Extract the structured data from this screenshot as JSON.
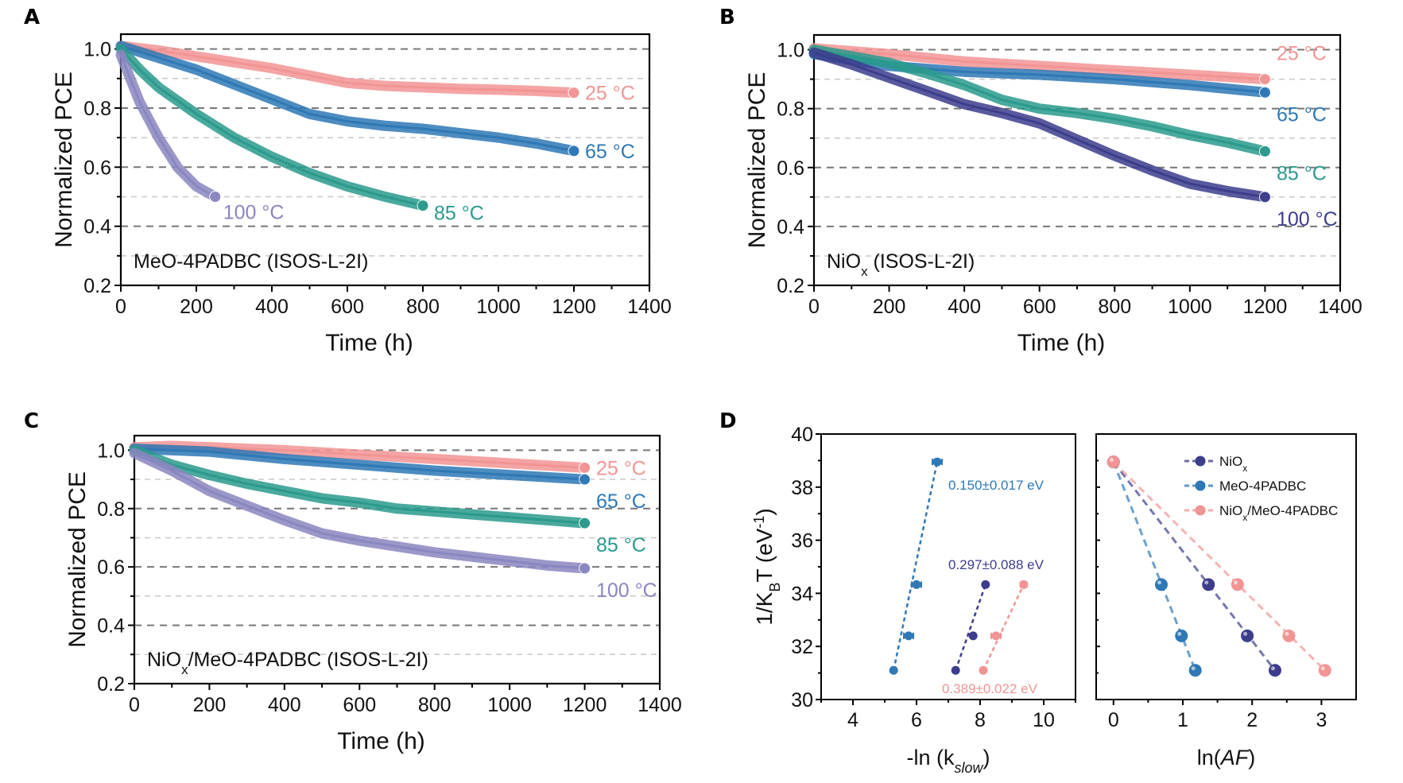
{
  "figure": {
    "panels": [
      "A",
      "B",
      "C",
      "D"
    ]
  },
  "colors": {
    "25C": "#f29494",
    "65C": "#2e78b5",
    "85C": "#2a9a8c",
    "100C_A": "#8a86c0",
    "100C": "#3c3d8c",
    "grid_major": "#777777",
    "grid_minor": "#c8c8c8"
  },
  "chart_data": [
    {
      "id": "A",
      "type": "line",
      "panel_label": "A",
      "annotation": "MeO-4PADBC (ISOS-L-2I)",
      "annotation_sub": "",
      "annotation_rest": "",
      "xlabel": "Time (h)",
      "ylabel": "Normalized PCE",
      "xlim": [
        0,
        1400
      ],
      "ylim": [
        0.2,
        1.05
      ],
      "xticks": [
        0,
        200,
        400,
        600,
        800,
        1000,
        1200,
        1400
      ],
      "yticks": [
        0.2,
        0.4,
        0.6,
        0.8,
        1.0
      ],
      "ytick_labels": [
        "0.2",
        "0.4",
        "0.6",
        "0.8",
        "1.0"
      ],
      "grid": true,
      "series": [
        {
          "name": "25 °C",
          "color_key": "25C",
          "x": [
            0,
            100,
            200,
            300,
            400,
            500,
            600,
            700,
            800,
            900,
            1000,
            1100,
            1200
          ],
          "y": [
            1.01,
            0.995,
            0.975,
            0.955,
            0.935,
            0.91,
            0.885,
            0.875,
            0.87,
            0.865,
            0.862,
            0.858,
            0.852
          ],
          "label_pos": "right"
        },
        {
          "name": "65 °C",
          "color_key": "65C",
          "x": [
            0,
            100,
            200,
            300,
            400,
            500,
            600,
            700,
            800,
            900,
            1000,
            1100,
            1200
          ],
          "y": [
            1.01,
            0.97,
            0.93,
            0.88,
            0.83,
            0.78,
            0.755,
            0.74,
            0.73,
            0.715,
            0.7,
            0.68,
            0.655
          ],
          "label_pos": "right"
        },
        {
          "name": "85 °C",
          "color_key": "85C",
          "x": [
            0,
            50,
            100,
            200,
            300,
            400,
            500,
            600,
            700,
            800
          ],
          "y": [
            1.0,
            0.93,
            0.87,
            0.78,
            0.7,
            0.635,
            0.58,
            0.535,
            0.5,
            0.47
          ],
          "label_pos": "below-right"
        },
        {
          "name": "100 °C",
          "color_key": "100C_A",
          "x": [
            0,
            25,
            50,
            100,
            150,
            200,
            250
          ],
          "y": [
            0.98,
            0.9,
            0.82,
            0.7,
            0.6,
            0.535,
            0.5
          ],
          "label_pos": "below-right"
        }
      ]
    },
    {
      "id": "B",
      "type": "line",
      "panel_label": "B",
      "annotation": "NiO",
      "annotation_sub": "x",
      "annotation_rest": " (ISOS-L-2I)",
      "xlabel": "Time (h)",
      "ylabel": "Normalized PCE",
      "xlim": [
        0,
        1400
      ],
      "ylim": [
        0.2,
        1.05
      ],
      "xticks": [
        0,
        200,
        400,
        600,
        800,
        1000,
        1200,
        1400
      ],
      "yticks": [
        0.2,
        0.4,
        0.6,
        0.8,
        1.0
      ],
      "ytick_labels": [
        "0.2",
        "0.4",
        "0.6",
        "0.8",
        "1.0"
      ],
      "grid": true,
      "series": [
        {
          "name": "25 °C",
          "color_key": "25C",
          "x": [
            0,
            200,
            400,
            600,
            800,
            1000,
            1200
          ],
          "y": [
            1.005,
            0.985,
            0.96,
            0.945,
            0.93,
            0.915,
            0.9
          ],
          "label_pos": "above-right"
        },
        {
          "name": "65 °C",
          "color_key": "65C",
          "x": [
            0,
            100,
            200,
            400,
            600,
            800,
            1000,
            1200
          ],
          "y": [
            0.985,
            0.965,
            0.945,
            0.925,
            0.915,
            0.9,
            0.88,
            0.855
          ],
          "label_pos": "below-right"
        },
        {
          "name": "85 °C",
          "color_key": "85C",
          "x": [
            0,
            200,
            300,
            400,
            500,
            600,
            700,
            800,
            900,
            1000,
            1100,
            1200
          ],
          "y": [
            1.0,
            0.955,
            0.92,
            0.88,
            0.83,
            0.8,
            0.785,
            0.765,
            0.74,
            0.71,
            0.685,
            0.655
          ],
          "label_pos": "below-right"
        },
        {
          "name": "100 °C",
          "color_key": "100C",
          "x": [
            0,
            100,
            200,
            300,
            400,
            500,
            600,
            700,
            800,
            900,
            1000,
            1100,
            1200
          ],
          "y": [
            0.99,
            0.95,
            0.905,
            0.86,
            0.815,
            0.785,
            0.75,
            0.695,
            0.64,
            0.59,
            0.545,
            0.52,
            0.5
          ],
          "label_pos": "below-right"
        }
      ]
    },
    {
      "id": "C",
      "type": "line",
      "panel_label": "C",
      "annotation": "NiO",
      "annotation_sub": "x",
      "annotation_rest": "/MeO-4PADBC (ISOS-L-2I)",
      "xlabel": "Time (h)",
      "ylabel": "Normalized PCE",
      "xlim": [
        0,
        1400
      ],
      "ylim": [
        0.2,
        1.05
      ],
      "xticks": [
        0,
        200,
        400,
        600,
        800,
        1000,
        1200,
        1400
      ],
      "yticks": [
        0.2,
        0.4,
        0.6,
        0.8,
        1.0
      ],
      "ytick_labels": [
        "0.2",
        "0.4",
        "0.6",
        "0.8",
        "1.0"
      ],
      "grid": true,
      "series": [
        {
          "name": "25 °C",
          "color_key": "25C",
          "x": [
            0,
            100,
            200,
            400,
            600,
            800,
            1000,
            1200
          ],
          "y": [
            1.01,
            1.015,
            1.01,
            1.0,
            0.985,
            0.97,
            0.955,
            0.94
          ],
          "label_pos": "right"
        },
        {
          "name": "65 °C",
          "color_key": "65C",
          "x": [
            0,
            200,
            400,
            600,
            800,
            1000,
            1200
          ],
          "y": [
            1.005,
            0.995,
            0.97,
            0.95,
            0.93,
            0.915,
            0.9
          ],
          "label_pos": "below-right"
        },
        {
          "name": "85 °C",
          "color_key": "85C",
          "x": [
            0,
            100,
            200,
            300,
            400,
            500,
            600,
            700,
            800,
            900,
            1000,
            1100,
            1200
          ],
          "y": [
            1.0,
            0.95,
            0.915,
            0.885,
            0.86,
            0.835,
            0.82,
            0.8,
            0.79,
            0.78,
            0.77,
            0.76,
            0.75
          ],
          "label_pos": "below-right"
        },
        {
          "name": "100 °C",
          "color_key": "100C_A",
          "x": [
            0,
            100,
            200,
            300,
            400,
            500,
            600,
            700,
            800,
            900,
            1000,
            1100,
            1200
          ],
          "y": [
            0.99,
            0.93,
            0.86,
            0.81,
            0.76,
            0.715,
            0.69,
            0.67,
            0.65,
            0.635,
            0.62,
            0.605,
            0.595
          ],
          "label_pos": "below-right"
        }
      ]
    },
    {
      "id": "D-left",
      "type": "scatter",
      "panel_label": "D",
      "xlabel": "-ln (k",
      "xlabel_sub": "slow",
      "xlabel_rest": ")",
      "ylabel": "1/K",
      "ylabel_sub": "B",
      "ylabel_rest": "T (eV",
      "ylabel_sup": "-1",
      "ylabel_end": ")",
      "xlim": [
        3,
        11
      ],
      "ylim": [
        30,
        40
      ],
      "xticks": [
        4,
        6,
        8,
        10
      ],
      "yticks": [
        30,
        32,
        34,
        36,
        38,
        40
      ],
      "grid": false,
      "series": [
        {
          "name": "MeO-4PADBC",
          "color_key": "65C",
          "x": [
            5.28,
            5.75,
            6.0,
            6.65
          ],
          "y": [
            31.1,
            32.4,
            34.33,
            38.95
          ],
          "xerr": [
            0.05,
            0.15,
            0.15,
            0.15
          ],
          "fit_label": "0.150±0.017 eV"
        },
        {
          "name": "NiOx",
          "color_key": "100C",
          "x": [
            7.23,
            7.78,
            8.17
          ],
          "y": [
            31.1,
            32.4,
            34.33
          ],
          "xerr": [
            0.05,
            0.05,
            0.05
          ],
          "fit_label": "0.297±0.088 eV"
        },
        {
          "name": "NiOx/MeO-4PADBC",
          "color_key": "25C",
          "x": [
            8.1,
            8.5,
            9.37
          ],
          "y": [
            31.1,
            32.4,
            34.33
          ],
          "xerr": [
            0.05,
            0.15,
            0.1
          ],
          "fit_label": "0.389±0.022 eV"
        }
      ]
    },
    {
      "id": "D-right",
      "type": "scatter",
      "xlabel": "ln(",
      "xlabel_ital": "AF",
      "xlabel_rest": ")",
      "xlim": [
        -0.25,
        3.5
      ],
      "ylim": [
        30,
        40
      ],
      "xticks": [
        0,
        1,
        2,
        3
      ],
      "yticks": [
        30,
        32,
        34,
        36,
        38,
        40
      ],
      "grid": false,
      "legend_position": "top-right",
      "series": [
        {
          "name": "NiO",
          "name_sub": "x",
          "name_rest": "",
          "color_key": "100C",
          "x": [
            0,
            1.37,
            1.93,
            2.33
          ],
          "y": [
            38.95,
            34.33,
            32.4,
            31.1
          ]
        },
        {
          "name": "MeO-4PADBC",
          "name_sub": "",
          "name_rest": "",
          "color_key": "65C",
          "x": [
            0,
            0.69,
            0.98,
            1.18
          ],
          "y": [
            38.95,
            34.33,
            32.4,
            31.1
          ]
        },
        {
          "name": "NiO",
          "name_sub": "x",
          "name_rest": "/MeO-4PADBC",
          "color_key": "25C",
          "x": [
            0,
            1.79,
            2.53,
            3.05
          ],
          "y": [
            38.95,
            34.33,
            32.4,
            31.1
          ]
        }
      ]
    }
  ]
}
